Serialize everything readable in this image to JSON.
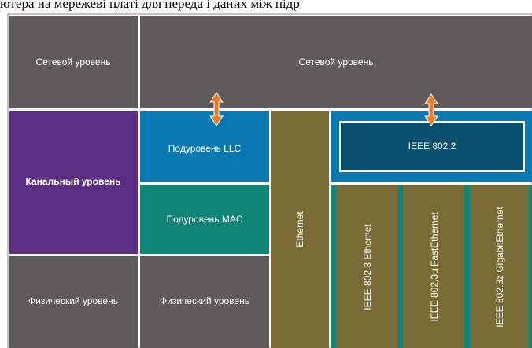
{
  "caption": "ютера на мережеві платі для переда і даних між підр",
  "network_left": "Сетевой уровень",
  "network_right": "Сетевой уровень",
  "datalink": "Канальный уровень",
  "llc": "Подуровень LLC",
  "mac": "Подуровень MAC",
  "physical_left": "Физический уровень",
  "physical_mid": "Физический уровень",
  "ethernet": "Ethernet",
  "ieee8022": "IEEE 802.2",
  "standards": [
    "IEEE 802.3 Ethernet",
    "IEEE 802.3u FastEthernet",
    "IEEE 802.3z GigabitEthernet"
  ]
}
